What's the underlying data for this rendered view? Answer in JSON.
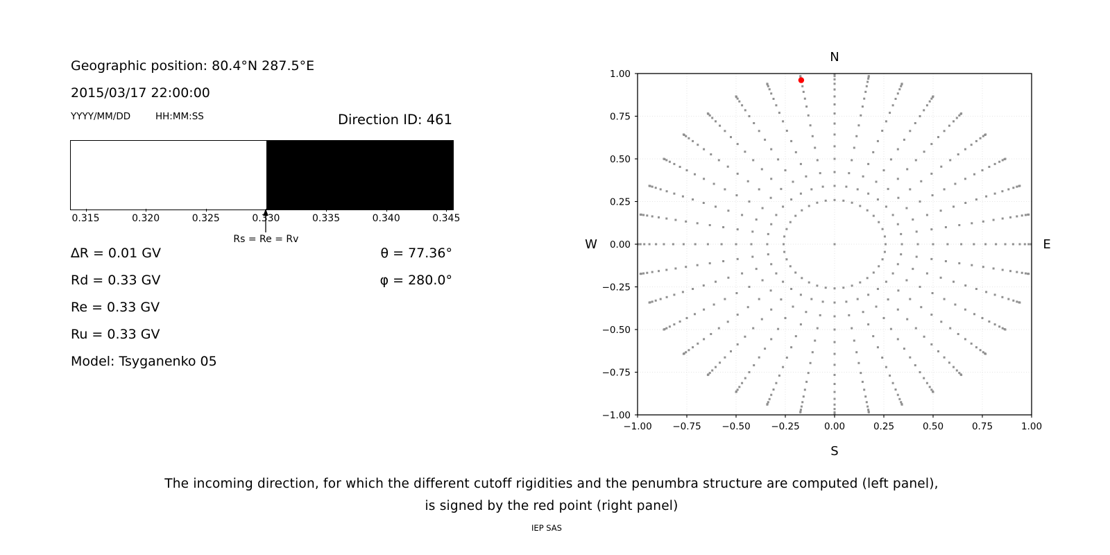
{
  "info_panel": {
    "geo_position": "Geographic position: 80.4°N 287.5°E",
    "datetime": "2015/03/17 22:00:00",
    "date_format_label": "YYYY/MM/DD",
    "time_format_label": "HH:MM:SS",
    "direction_id": "Direction ID: 461",
    "delta_r": "∆R = 0.01 GV",
    "rd": "Rd = 0.33 GV",
    "re": "Re = 0.33 GV",
    "ru": "Ru = 0.33 GV",
    "model": "Model: Tsyganenko 05",
    "theta": "θ = 77.36°",
    "phi": "φ = 280.0°"
  },
  "caption": {
    "line1": "The incoming direction, for which the different cutoff rigidities and the penumbra structure are computed (left panel),",
    "line2": "is signed by the red point (right panel)",
    "credit": "IEP SAS"
  },
  "chart_data": [
    {
      "type": "area",
      "name": "penumbra-strip",
      "description": "Penumbra structure vs rigidity (GV): white = allowed, black = forbidden",
      "x_min": 0.3137,
      "x_max": 0.3455,
      "boundary": 0.33,
      "ticks": [
        0.315,
        0.32,
        0.325,
        0.33,
        0.335,
        0.34,
        0.345
      ],
      "tick_labels": [
        "0.315",
        "0.320",
        "0.325",
        "0.330",
        "0.335",
        "0.340",
        "0.345"
      ],
      "regions": [
        {
          "from": 0.3137,
          "to": 0.33,
          "state": "allowed",
          "color": "#ffffff"
        },
        {
          "from": 0.33,
          "to": 0.3455,
          "state": "forbidden",
          "color": "#000000"
        }
      ],
      "annotation": "Rs = Re = Rv",
      "annotation_arrow_at": 0.33
    },
    {
      "type": "scatter",
      "name": "direction-grid",
      "description": "Grid of incoming directions: x = sin(zenith)*sin(azimuth) toward E, y = sin(zenith)*cos(azimuth) toward N; dots bunch at horizon (r = sin(zenith) -> 1)",
      "top_label": "N",
      "bottom_label": "S",
      "left_label": "W",
      "right_label": "E",
      "xlim": [
        -1.0,
        1.0
      ],
      "ylim": [
        -1.0,
        1.0
      ],
      "ticks": [
        -1.0,
        -0.75,
        -0.5,
        -0.25,
        0.0,
        0.25,
        0.5,
        0.75,
        1.0
      ],
      "tick_labels": [
        "−1.00",
        "−0.75",
        "−0.50",
        "−0.25",
        "0.00",
        "0.25",
        "0.50",
        "0.75",
        "1.00"
      ],
      "grid": true,
      "grid_color": "#e3e3e3",
      "azimuth_start_deg": 0,
      "azimuth_step_deg": 10,
      "azimuth_count": 36,
      "zenith_start_deg": 15,
      "zenith_step_deg": 5,
      "zenith_count": 16,
      "radius_rule": "sin(zenith)",
      "has_center_point": true,
      "dot_color": "#909090",
      "red_point": {
        "x": -0.1694,
        "y": 0.9609,
        "theta_deg": 77.36,
        "phi_deg": 280.0,
        "plot_azimuth_deg": 350,
        "color": "#ff0000"
      }
    }
  ]
}
